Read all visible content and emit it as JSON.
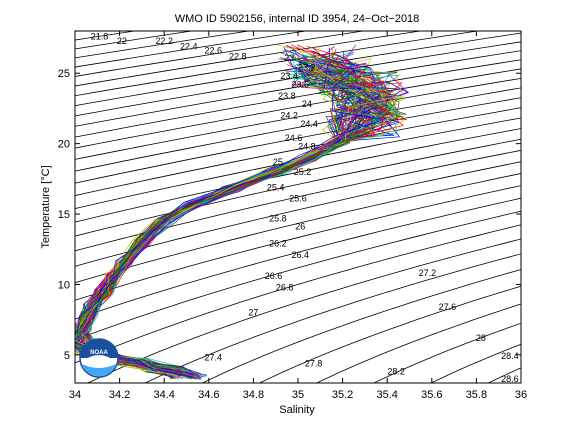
{
  "chart_data": {
    "type": "line",
    "title": "WMO ID 5902156, internal ID 3954, 24−Oct−2018",
    "xlabel": "Salinity",
    "ylabel": "Temperature [°C]",
    "xlim": [
      34,
      36
    ],
    "ylim": [
      3,
      28
    ],
    "x_ticks": [
      "34",
      "34.2",
      "34.4",
      "34.6",
      "34.8",
      "35",
      "35.2",
      "35.4",
      "35.6",
      "35.8",
      "36"
    ],
    "y_ticks": [
      "5",
      "10",
      "15",
      "20",
      "25"
    ],
    "density_contour_labels": [
      {
        "label": "21.8",
        "s": 34.11,
        "t": 27.6
      },
      {
        "label": "22",
        "s": 34.21,
        "t": 27.3
      },
      {
        "label": "22.2",
        "s": 34.4,
        "t": 27.3
      },
      {
        "label": "22.4",
        "s": 34.51,
        "t": 26.9
      },
      {
        "label": "22.6",
        "s": 34.62,
        "t": 26.6
      },
      {
        "label": "22.8",
        "s": 34.73,
        "t": 26.2
      },
      {
        "label": "23",
        "s": 34.96,
        "t": 26.1
      },
      {
        "label": "23.2",
        "s": 35.04,
        "t": 25.4
      },
      {
        "label": "23.4",
        "s": 34.96,
        "t": 24.8
      },
      {
        "label": "23.6",
        "s": 35.01,
        "t": 24.2
      },
      {
        "label": "23.8",
        "s": 34.95,
        "t": 23.4
      },
      {
        "label": "24",
        "s": 35.04,
        "t": 22.8
      },
      {
        "label": "24.2",
        "s": 34.96,
        "t": 22.0
      },
      {
        "label": "24.4",
        "s": 35.05,
        "t": 21.4
      },
      {
        "label": "24.6",
        "s": 34.98,
        "t": 20.4
      },
      {
        "label": "24.8",
        "s": 35.04,
        "t": 19.8
      },
      {
        "label": "25",
        "s": 34.91,
        "t": 18.7
      },
      {
        "label": "25.2",
        "s": 35.02,
        "t": 18.0
      },
      {
        "label": "25.4",
        "s": 34.9,
        "t": 16.9
      },
      {
        "label": "25.6",
        "s": 35.0,
        "t": 16.1
      },
      {
        "label": "25.8",
        "s": 34.91,
        "t": 14.7
      },
      {
        "label": "26",
        "s": 35.01,
        "t": 14.1
      },
      {
        "label": "26.2",
        "s": 34.91,
        "t": 12.9
      },
      {
        "label": "26.4",
        "s": 35.01,
        "t": 12.1
      },
      {
        "label": "26.6",
        "s": 34.89,
        "t": 10.6
      },
      {
        "label": "26.8",
        "s": 34.94,
        "t": 9.8
      },
      {
        "label": "27",
        "s": 34.8,
        "t": 8.0
      },
      {
        "label": "27.2",
        "s": 35.58,
        "t": 10.8
      },
      {
        "label": "27.4",
        "s": 34.62,
        "t": 4.8
      },
      {
        "label": "27.6",
        "s": 35.67,
        "t": 8.4
      },
      {
        "label": "27.8",
        "s": 35.07,
        "t": 4.4
      },
      {
        "label": "28",
        "s": 35.82,
        "t": 6.2
      },
      {
        "label": "28.2",
        "s": 35.44,
        "t": 3.8
      },
      {
        "label": "28.4",
        "s": 35.95,
        "t": 4.9
      },
      {
        "label": "28.6",
        "s": 35.95,
        "t": 3.3
      }
    ],
    "profile_count": 100,
    "profiles_path": [
      {
        "s": 34.5,
        "t": 3.5
      },
      {
        "s": 34.4,
        "t": 4.0
      },
      {
        "s": 34.25,
        "t": 4.5
      },
      {
        "s": 34.1,
        "t": 5.0
      },
      {
        "s": 34.02,
        "t": 5.8
      },
      {
        "s": 34.03,
        "t": 6.8
      },
      {
        "s": 34.06,
        "t": 7.8
      },
      {
        "s": 34.08,
        "t": 8.5
      },
      {
        "s": 34.13,
        "t": 9.5
      },
      {
        "s": 34.17,
        "t": 10.5
      },
      {
        "s": 34.22,
        "t": 11.5
      },
      {
        "s": 34.3,
        "t": 13.0
      },
      {
        "s": 34.4,
        "t": 14.5
      },
      {
        "s": 34.52,
        "t": 15.6
      },
      {
        "s": 34.7,
        "t": 16.8
      },
      {
        "s": 34.9,
        "t": 18.0
      },
      {
        "s": 35.05,
        "t": 19.0
      },
      {
        "s": 35.2,
        "t": 20.3
      },
      {
        "s": 35.3,
        "t": 21.5
      },
      {
        "s": 35.32,
        "t": 22.8
      },
      {
        "s": 35.28,
        "t": 24.0
      },
      {
        "s": 35.15,
        "t": 25.0
      },
      {
        "s": 35.1,
        "t": 26.0
      }
    ],
    "colors": {
      "profiles": [
        "#0000ff",
        "#008000",
        "#ff0000",
        "#00bfbf",
        "#bf00bf",
        "#bfbf00",
        "#404040"
      ],
      "contours": "#000000",
      "noaa_logo_blue": "#1a4fa0",
      "noaa_logo_sky": "#3fa9f5"
    },
    "grid": false,
    "logo_text": "NOAA"
  }
}
